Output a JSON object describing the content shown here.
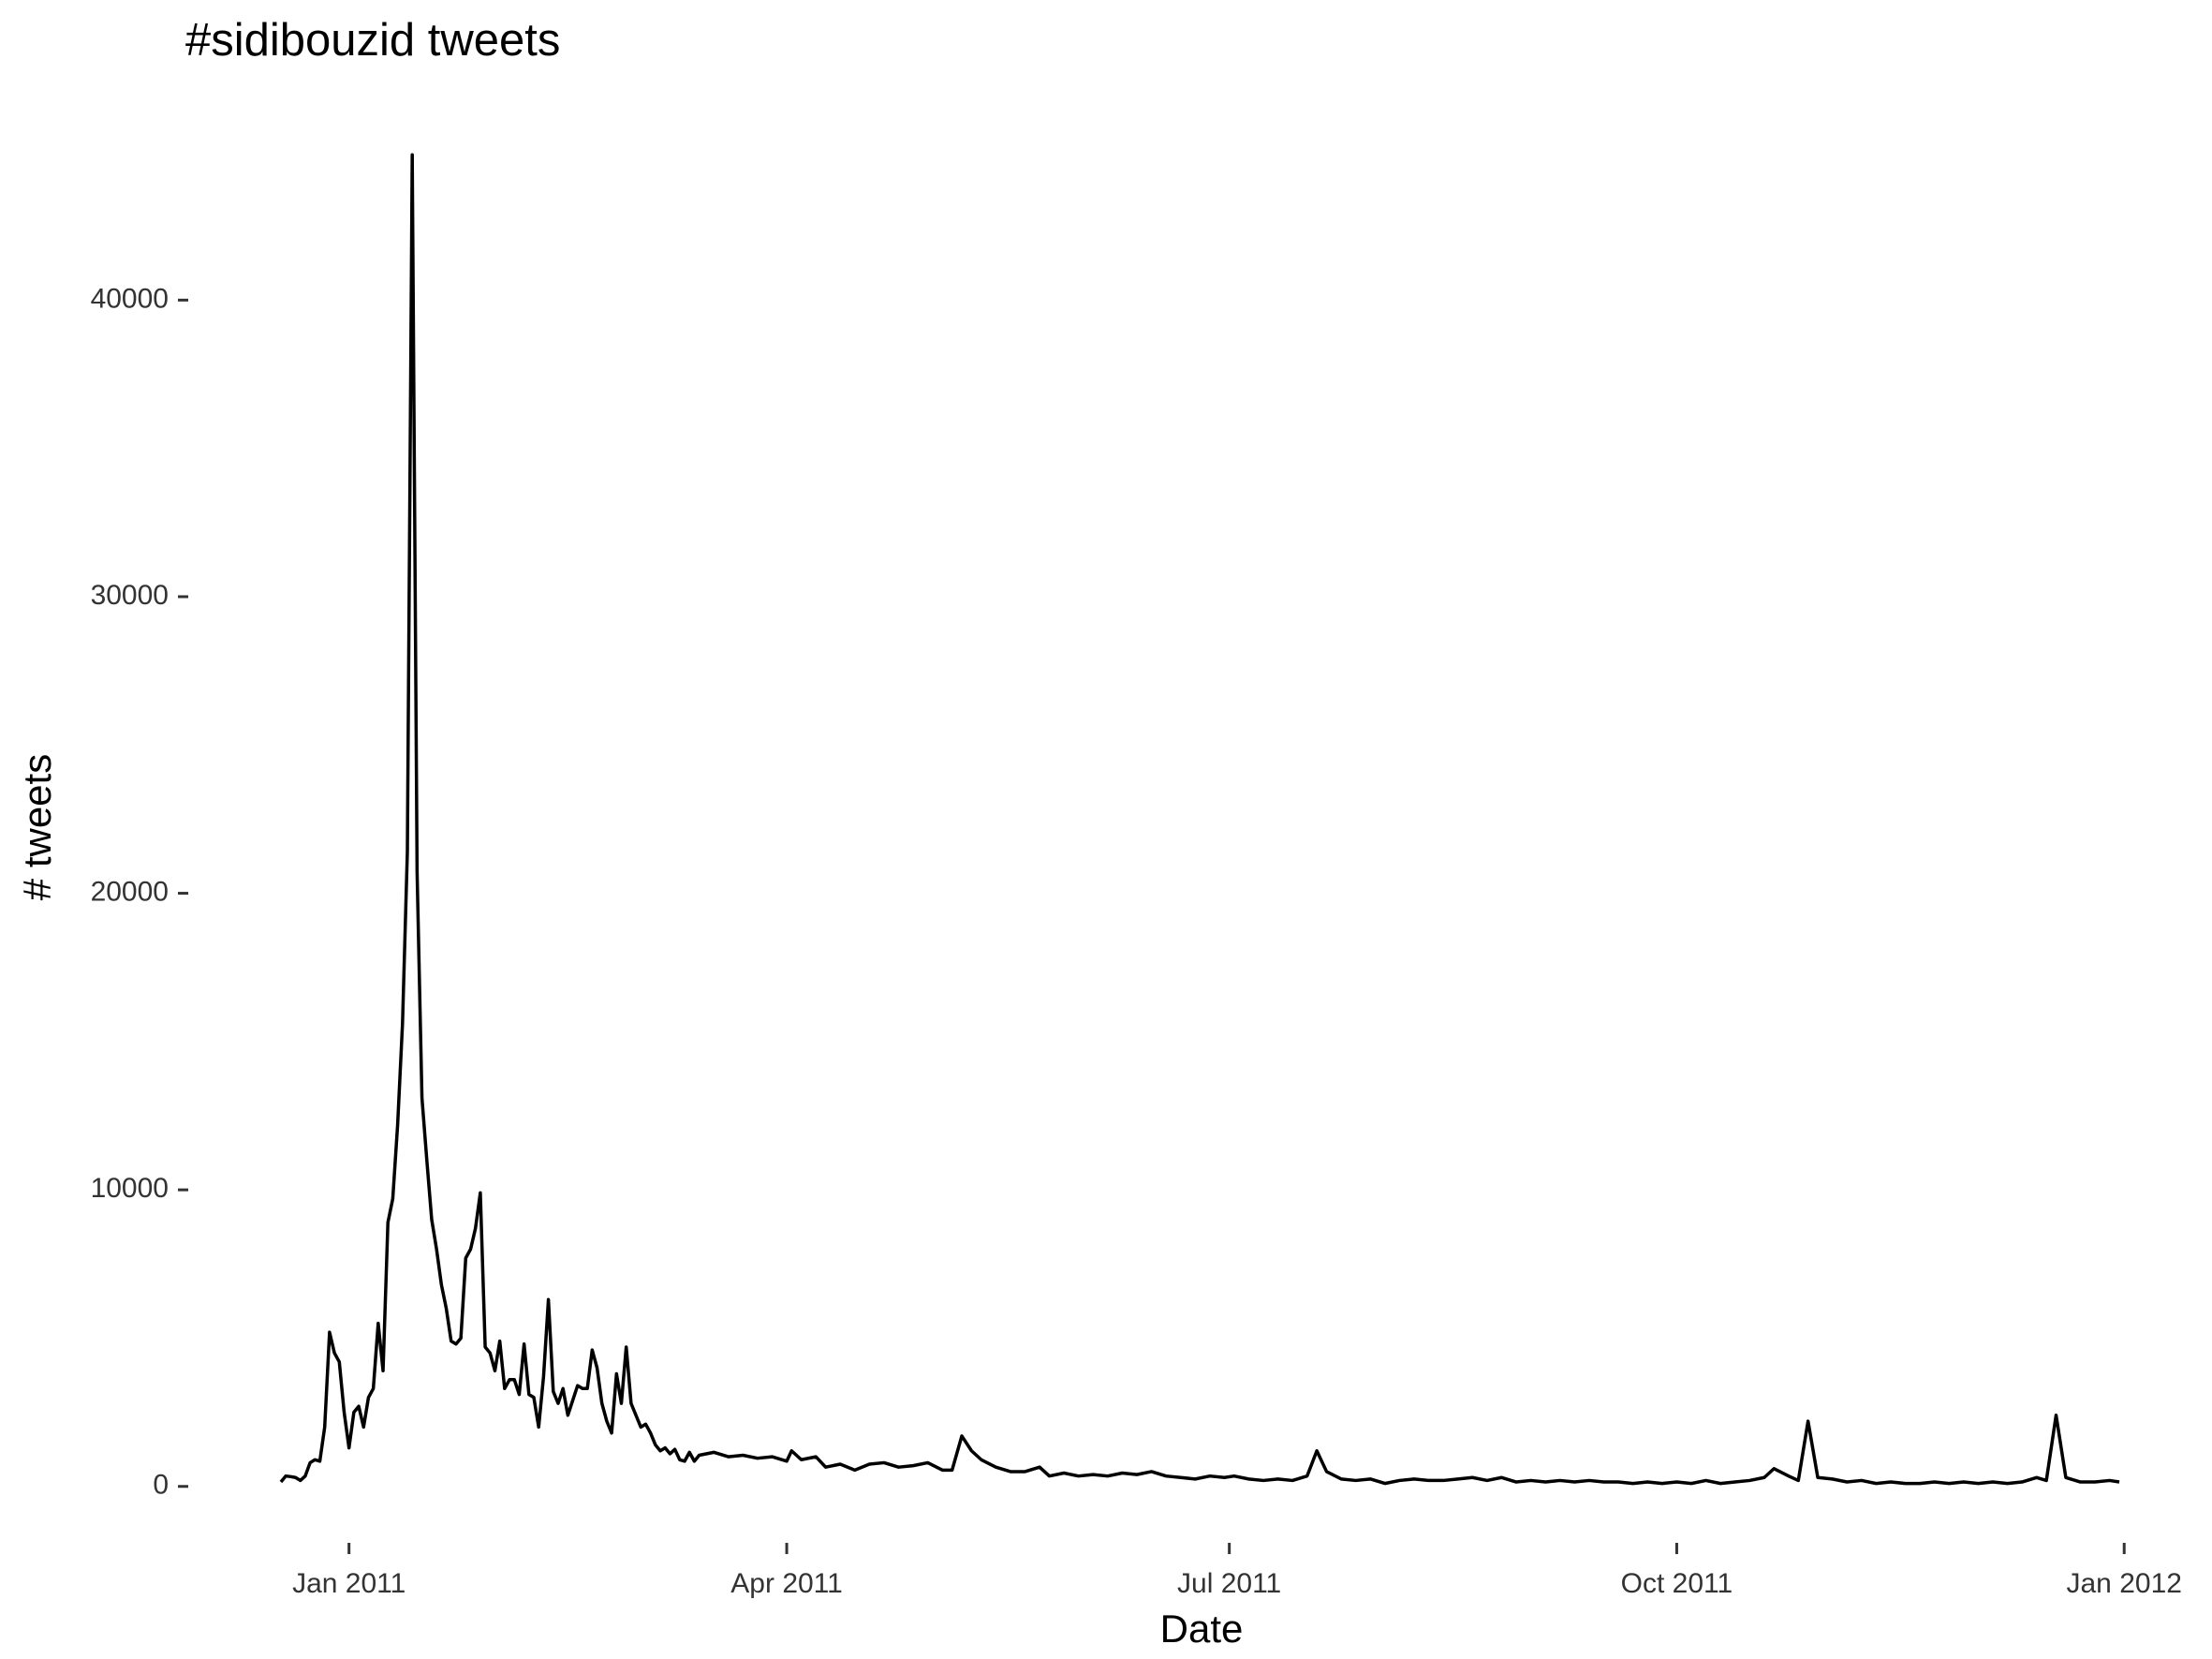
{
  "chart_data": {
    "type": "line",
    "title": "#sidibouzid tweets",
    "x_label": "Date",
    "y_label": "# tweets",
    "color": "#000000",
    "x": [
      "2010-12-18",
      "2010-12-19",
      "2010-12-20",
      "2010-12-21",
      "2010-12-22",
      "2010-12-23",
      "2010-12-24",
      "2010-12-25",
      "2010-12-26",
      "2010-12-27",
      "2010-12-28",
      "2010-12-29",
      "2010-12-30",
      "2010-12-31",
      "2011-01-01",
      "2011-01-02",
      "2011-01-03",
      "2011-01-04",
      "2011-01-05",
      "2011-01-06",
      "2011-01-07",
      "2011-01-08",
      "2011-01-09",
      "2011-01-10",
      "2011-01-11",
      "2011-01-12",
      "2011-01-13",
      "2011-01-14",
      "2011-01-15",
      "2011-01-16",
      "2011-01-17",
      "2011-01-18",
      "2011-01-19",
      "2011-01-20",
      "2011-01-21",
      "2011-01-22",
      "2011-01-23",
      "2011-01-24",
      "2011-01-25",
      "2011-01-26",
      "2011-01-27",
      "2011-01-28",
      "2011-01-29",
      "2011-01-30",
      "2011-01-31",
      "2011-02-01",
      "2011-02-02",
      "2011-02-03",
      "2011-02-04",
      "2011-02-05",
      "2011-02-06",
      "2011-02-07",
      "2011-02-08",
      "2011-02-09",
      "2011-02-10",
      "2011-02-11",
      "2011-02-12",
      "2011-02-13",
      "2011-02-14",
      "2011-02-15",
      "2011-02-16",
      "2011-02-17",
      "2011-02-18",
      "2011-02-19",
      "2011-02-20",
      "2011-02-21",
      "2011-02-22",
      "2011-02-23",
      "2011-02-24",
      "2011-02-25",
      "2011-02-26",
      "2011-02-27",
      "2011-02-28",
      "2011-03-01",
      "2011-03-02",
      "2011-03-03",
      "2011-03-04",
      "2011-03-05",
      "2011-03-06",
      "2011-03-07",
      "2011-03-08",
      "2011-03-09",
      "2011-03-10",
      "2011-03-11",
      "2011-03-12",
      "2011-03-13",
      "2011-03-14",
      "2011-03-17",
      "2011-03-20",
      "2011-03-23",
      "2011-03-26",
      "2011-03-29",
      "2011-04-01",
      "2011-04-02",
      "2011-04-04",
      "2011-04-07",
      "2011-04-09",
      "2011-04-12",
      "2011-04-15",
      "2011-04-18",
      "2011-04-21",
      "2011-04-24",
      "2011-04-27",
      "2011-04-30",
      "2011-05-03",
      "2011-05-05",
      "2011-05-07",
      "2011-05-09",
      "2011-05-11",
      "2011-05-14",
      "2011-05-17",
      "2011-05-20",
      "2011-05-23",
      "2011-05-25",
      "2011-05-28",
      "2011-05-31",
      "2011-06-03",
      "2011-06-06",
      "2011-06-09",
      "2011-06-12",
      "2011-06-15",
      "2011-06-18",
      "2011-06-21",
      "2011-06-24",
      "2011-06-27",
      "2011-06-30",
      "2011-07-02",
      "2011-07-05",
      "2011-07-08",
      "2011-07-11",
      "2011-07-14",
      "2011-07-17",
      "2011-07-19",
      "2011-07-21",
      "2011-07-24",
      "2011-07-27",
      "2011-07-30",
      "2011-08-02",
      "2011-08-05",
      "2011-08-08",
      "2011-08-11",
      "2011-08-14",
      "2011-08-17",
      "2011-08-20",
      "2011-08-23",
      "2011-08-26",
      "2011-08-29",
      "2011-09-01",
      "2011-09-04",
      "2011-09-07",
      "2011-09-10",
      "2011-09-13",
      "2011-09-16",
      "2011-09-19",
      "2011-09-22",
      "2011-09-25",
      "2011-09-28",
      "2011-10-01",
      "2011-10-04",
      "2011-10-07",
      "2011-10-10",
      "2011-10-13",
      "2011-10-16",
      "2011-10-19",
      "2011-10-21",
      "2011-10-24",
      "2011-10-26",
      "2011-10-28",
      "2011-10-30",
      "2011-11-02",
      "2011-11-05",
      "2011-11-08",
      "2011-11-11",
      "2011-11-14",
      "2011-11-17",
      "2011-11-20",
      "2011-11-23",
      "2011-11-26",
      "2011-11-29",
      "2011-12-02",
      "2011-12-05",
      "2011-12-08",
      "2011-12-11",
      "2011-12-14",
      "2011-12-16",
      "2011-12-18",
      "2011-12-20",
      "2011-12-23",
      "2011-12-26",
      "2011-12-29",
      "2011-12-31"
    ],
    "values": [
      150,
      350,
      330,
      300,
      200,
      350,
      800,
      900,
      850,
      2000,
      5200,
      4500,
      4200,
      2500,
      1300,
      2500,
      2700,
      2000,
      3000,
      3300,
      5500,
      3900,
      8900,
      9700,
      12200,
      15600,
      21400,
      44900,
      20700,
      13100,
      11000,
      9000,
      8000,
      6800,
      6000,
      4900,
      4800,
      5000,
      7700,
      8000,
      8700,
      9900,
      4700,
      4500,
      3900,
      4900,
      3300,
      3600,
      3600,
      3100,
      4800,
      3100,
      3000,
      2000,
      3700,
      6300,
      3200,
      2800,
      3300,
      2400,
      2900,
      3400,
      3300,
      3300,
      4600,
      4000,
      2800,
      2200,
      1800,
      3800,
      2800,
      4700,
      2800,
      2400,
      2000,
      2100,
      1800,
      1400,
      1200,
      1300,
      1100,
      1250,
      900,
      850,
      1150,
      850,
      1050,
      1150,
      1000,
      1050,
      950,
      1000,
      850,
      1200,
      900,
      1000,
      650,
      750,
      550,
      750,
      800,
      650,
      700,
      800,
      550,
      550,
      1700,
      1200,
      900,
      650,
      500,
      500,
      650,
      350,
      450,
      350,
      400,
      350,
      450,
      400,
      500,
      350,
      300,
      250,
      350,
      300,
      350,
      250,
      200,
      250,
      200,
      350,
      1200,
      500,
      250,
      200,
      250,
      100,
      200,
      250,
      200,
      200,
      250,
      300,
      200,
      300,
      150,
      200,
      150,
      200,
      150,
      200,
      150,
      150,
      100,
      150,
      100,
      150,
      100,
      200,
      100,
      150,
      200,
      300,
      600,
      350,
      200,
      2200,
      300,
      250,
      150,
      200,
      100,
      150,
      100,
      100,
      150,
      100,
      150,
      100,
      150,
      100,
      150,
      300,
      200,
      2400,
      300,
      150,
      150,
      200,
      150
    ],
    "xlim": [
      "2010-12-13",
      "2012-01-05"
    ],
    "xticks": [
      {
        "value": "2011-01-01",
        "label": "Jan 2011"
      },
      {
        "value": "2011-04-01",
        "label": "Apr 2011"
      },
      {
        "value": "2011-07-01",
        "label": "Jul 2011"
      },
      {
        "value": "2011-10-01",
        "label": "Oct 2011"
      },
      {
        "value": "2012-01-01",
        "label": "Jan 2012"
      }
    ],
    "ylim": [
      -2250,
      47150
    ],
    "yticks": [
      0,
      10000,
      20000,
      30000,
      40000
    ],
    "grid": false
  }
}
